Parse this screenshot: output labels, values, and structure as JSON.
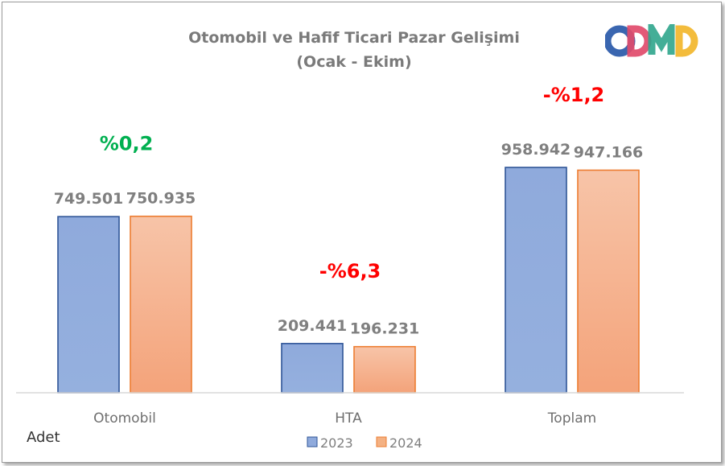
{
  "chart_data": {
    "type": "bar",
    "title_line1": "Otomobil ve Hafif Ticari Pazar Gelişimi",
    "title_line2": "(Ocak - Ekim)",
    "unit_label": "Adet",
    "categories": [
      "Otomobil",
      "HTA",
      "Toplam"
    ],
    "series": [
      {
        "name": "2023",
        "values": [
          749501,
          209441,
          958942
        ],
        "labels": [
          "749.501",
          "209.441",
          "958.942"
        ],
        "fill": "#8faadc",
        "stroke": "#2f5597"
      },
      {
        "name": "2024",
        "values": [
          750935,
          196231,
          947166
        ],
        "labels": [
          "750.935",
          "196.231",
          "947.166"
        ],
        "fill": "#f4b183",
        "stroke": "#ed7d31"
      }
    ],
    "changes": [
      {
        "text": "%0,2",
        "color": "#00b050"
      },
      {
        "text": "-%6,3",
        "color": "#ff0000"
      },
      {
        "text": "-%1,2",
        "color": "#ff0000"
      }
    ],
    "ylim": [
      0,
      1100000
    ],
    "grid": false,
    "legend_position": "bottom"
  },
  "logo": {
    "text": "ODMD",
    "colors": [
      "#3a66b0",
      "#e14b6b",
      "#2fa58c",
      "#f2b62b"
    ]
  }
}
